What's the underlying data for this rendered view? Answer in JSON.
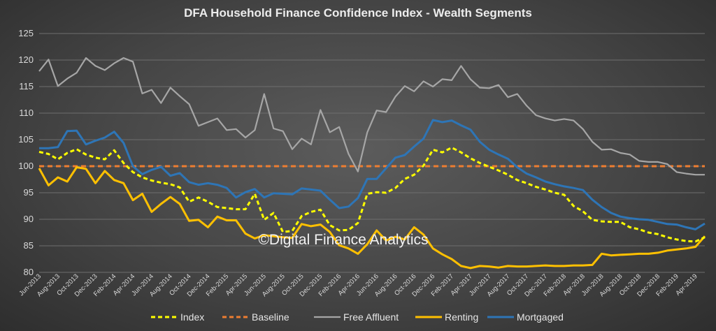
{
  "chart_data": {
    "type": "line",
    "title": "DFA Household Finance Confidence Index - Wealth Segments",
    "ylim": [
      80,
      125
    ],
    "yticks": [
      80,
      85,
      90,
      95,
      100,
      105,
      110,
      115,
      120,
      125
    ],
    "x_tick_labels": [
      "Jun-2013",
      "Aug-2013",
      "Oct-2013",
      "Dec-2013",
      "Feb-2014",
      "Apr-2014",
      "Jun-2014",
      "Aug-2014",
      "Oct-2014",
      "Dec-2014",
      "Feb-2015",
      "Apr-2015",
      "Jun-2015",
      "Aug-2015",
      "Oct-2015",
      "Dec-2015",
      "Feb-2016",
      "Apr-2016",
      "Jun-2016",
      "Aug-2016",
      "Oct-2016",
      "Dec-2016",
      "Feb-2017",
      "Apr-2017",
      "Jun-2017",
      "Aug-2017",
      "Oct-2017",
      "Dec-2017",
      "Feb-2018",
      "Apr-2018",
      "Jun-2018",
      "Aug-2018",
      "Oct-2018",
      "Dec-2018",
      "Feb-2019",
      "Apr-2019"
    ],
    "watermark": "©Digital Finance Analytics",
    "series": [
      {
        "name": "Index",
        "color": "#ffff00",
        "dash": "dashed",
        "values": [
          102.7,
          102.3,
          101.3,
          102.5,
          103.2,
          102.2,
          101.6,
          101.3,
          103.0,
          100.6,
          98.9,
          97.9,
          97.3,
          96.9,
          96.6,
          96.0,
          93.3,
          94.1,
          93.3,
          92.3,
          92.1,
          91.9,
          91.9,
          94.8,
          89.9,
          91.2,
          87.6,
          87.8,
          90.6,
          91.4,
          91.8,
          88.9,
          87.9,
          88.0,
          89.3,
          94.8,
          95.1,
          95.0,
          95.9,
          97.6,
          98.4,
          100.1,
          103.1,
          102.6,
          103.5,
          102.6,
          101.5,
          100.6,
          99.9,
          99.2,
          98.4,
          97.4,
          96.8,
          96.1,
          95.6,
          95.0,
          94.6,
          92.5,
          91.5,
          89.9,
          89.6,
          89.5,
          89.5,
          88.5,
          88.1,
          87.5,
          87.2,
          86.6,
          86.2,
          85.9,
          85.8,
          86.6
        ]
      },
      {
        "name": "Baseline",
        "color": "#ed7d31",
        "dash": "dashed",
        "values": [
          100,
          100,
          100,
          100,
          100,
          100,
          100,
          100,
          100,
          100,
          100,
          100,
          100,
          100,
          100,
          100,
          100,
          100,
          100,
          100,
          100,
          100,
          100,
          100,
          100,
          100,
          100,
          100,
          100,
          100,
          100,
          100,
          100,
          100,
          100,
          100,
          100,
          100,
          100,
          100,
          100,
          100,
          100,
          100,
          100,
          100,
          100,
          100,
          100,
          100,
          100,
          100,
          100,
          100,
          100,
          100,
          100,
          100,
          100,
          100,
          100,
          100,
          100,
          100,
          100,
          100,
          100,
          100,
          100,
          100,
          100,
          100
        ]
      },
      {
        "name": "Free Affluent",
        "color": "#a6a6a6",
        "dash": "solid",
        "values": [
          117.9,
          120.1,
          115.1,
          116.5,
          117.6,
          120.4,
          118.9,
          118.1,
          119.4,
          120.4,
          119.7,
          113.7,
          114.4,
          111.9,
          114.8,
          113.2,
          111.7,
          107.6,
          108.3,
          109.0,
          106.8,
          107.0,
          105.4,
          106.8,
          113.6,
          107.1,
          106.6,
          103.2,
          105.2,
          104.1,
          110.6,
          106.4,
          107.4,
          102.3,
          99.0,
          106.4,
          110.5,
          110.2,
          113.1,
          115.1,
          114.1,
          116.0,
          115.0,
          116.4,
          116.2,
          118.9,
          116.4,
          114.8,
          114.7,
          115.3,
          113.0,
          113.6,
          111.4,
          109.6,
          109.0,
          108.6,
          108.9,
          108.6,
          107.0,
          104.6,
          103.1,
          103.2,
          102.5,
          102.2,
          101.0,
          100.8,
          100.8,
          100.4,
          98.9,
          98.6,
          98.4,
          98.4
        ]
      },
      {
        "name": "Renting",
        "color": "#ffc000",
        "dash": "solid",
        "values": [
          99.6,
          96.4,
          97.9,
          97.1,
          99.8,
          99.5,
          96.8,
          99.1,
          97.4,
          96.8,
          93.6,
          94.8,
          91.4,
          92.9,
          94.2,
          92.9,
          89.7,
          89.9,
          88.5,
          90.5,
          89.8,
          89.8,
          87.3,
          86.4,
          87.0,
          86.8,
          86.6,
          86.5,
          89.1,
          88.7,
          89.0,
          87.6,
          85.1,
          84.5,
          83.5,
          85.3,
          87.9,
          86.0,
          86.7,
          86.2,
          88.5,
          87.1,
          84.5,
          83.4,
          82.5,
          81.2,
          80.8,
          81.2,
          81.1,
          80.9,
          81.2,
          81.1,
          81.1,
          81.2,
          81.3,
          81.2,
          81.2,
          81.3,
          81.3,
          81.4,
          83.5,
          83.2,
          83.3,
          83.4,
          83.5,
          83.5,
          83.7,
          84.1,
          84.3,
          84.5,
          84.8,
          86.8
        ]
      },
      {
        "name": "Mortgaged",
        "color": "#2e75b6",
        "dash": "solid",
        "values": [
          103.4,
          103.4,
          103.6,
          106.6,
          106.7,
          104.1,
          104.8,
          105.4,
          106.5,
          104.4,
          100.0,
          98.5,
          99.3,
          99.9,
          98.2,
          98.7,
          97.0,
          96.5,
          96.8,
          96.5,
          95.9,
          94.1,
          95.1,
          95.7,
          94.1,
          94.9,
          94.8,
          94.7,
          95.8,
          95.6,
          95.4,
          93.7,
          92.1,
          92.4,
          94.0,
          97.6,
          97.6,
          99.6,
          101.6,
          102.1,
          103.7,
          105.2,
          108.7,
          108.3,
          108.6,
          107.7,
          106.9,
          104.6,
          103.1,
          102.2,
          101.4,
          99.8,
          98.6,
          97.9,
          97.1,
          96.6,
          96.2,
          95.9,
          95.5,
          93.7,
          92.3,
          91.2,
          90.5,
          90.2,
          90.0,
          89.9,
          89.5,
          89.1,
          89.0,
          88.5,
          88.1,
          89.2
        ]
      }
    ]
  }
}
